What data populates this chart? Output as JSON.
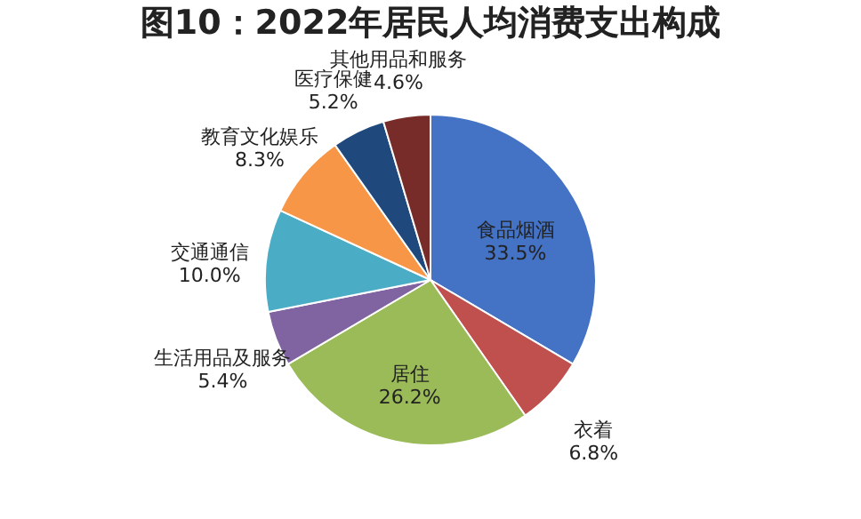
{
  "chart_data": {
    "type": "pie",
    "title": "图10：2022年居民人均消费支出构成",
    "categories": [
      "食品烟酒",
      "衣着",
      "居住",
      "生活用品及服务",
      "交通通信",
      "教育文化娱乐",
      "医疗保健",
      "其他用品和服务"
    ],
    "values": [
      33.5,
      6.8,
      26.2,
      5.4,
      10.0,
      8.3,
      5.2,
      4.6
    ],
    "value_labels": [
      "33.5%",
      "6.8%",
      "26.2%",
      "5.4%",
      "10.0%",
      "8.3%",
      "5.2%",
      "4.6%"
    ],
    "colors": [
      "#4472c4",
      "#c0504d",
      "#9bbb59",
      "#8064a2",
      "#4bacc6",
      "#f79646",
      "#1f497d",
      "#772c2a"
    ]
  }
}
